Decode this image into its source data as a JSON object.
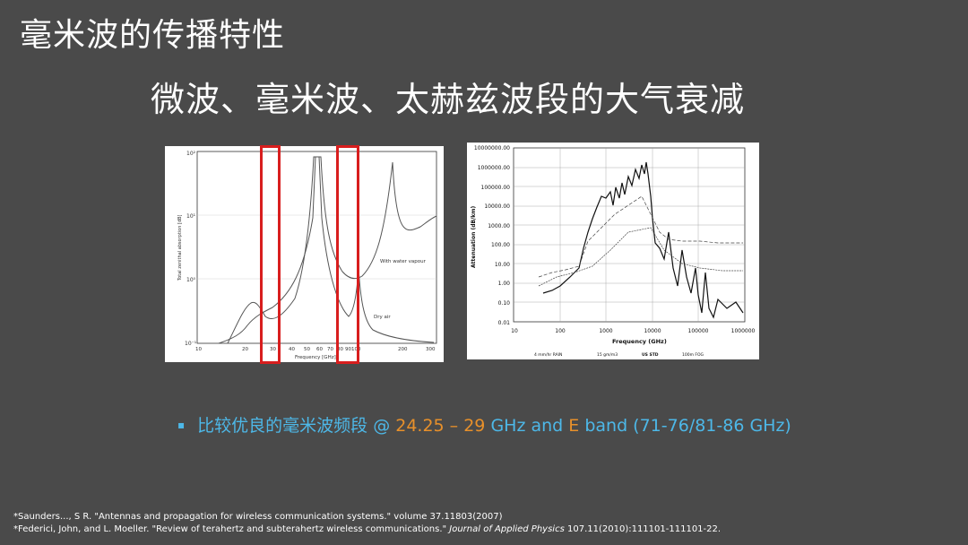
{
  "slide": {
    "title": "毫米波的传播特性",
    "subtitle": "微波、毫米波、太赫兹波段的大气衰减"
  },
  "colors": {
    "background": "#4a4a4a",
    "highlight_red": "#d81e1e",
    "accent_blue": "#4db8e8",
    "accent_orange": "#e8902a"
  },
  "figure_left": {
    "y_axis_label": "Total zenithal absorption [dB]",
    "x_axis_label": "Frequency [GHz]",
    "x_ticks": [
      "10",
      "20",
      "30",
      "40",
      "50",
      "60",
      "70",
      "80",
      "90",
      "100",
      "200",
      "300"
    ],
    "y_ticks": [
      "10²",
      "10¹",
      "10⁰",
      "10⁻¹"
    ],
    "annotations": [
      "With water vapour",
      "Dry air"
    ]
  },
  "figure_right": {
    "y_axis_label": "Attenuation (dB/km)",
    "x_axis_label": "Frequency (GHz)",
    "y_ticks": [
      "10000000.00",
      "1000000.00",
      "100000.00",
      "10000.00",
      "1000.00",
      "100.00",
      "10.00",
      "1.00",
      "0.10",
      "0.01"
    ],
    "x_ticks": [
      "10",
      "100",
      "1000",
      "10000",
      "100000",
      "1000000"
    ],
    "legend": [
      "4 mm/hr RAIN",
      "15 gm/m3",
      "US STD",
      "100m FOG"
    ]
  },
  "bullet": {
    "marker": "▪",
    "part1": "比较优良的毫米波频段",
    "part2": " @ ",
    "part3": "24.25 – 29",
    "part4": " GHz and ",
    "part5": "E",
    "part6": " band ",
    "part7": "(71-76/81-86 GHz)"
  },
  "references": {
    "ref1": "*Saunders..., S R. \"Antennas and propagation for wireless communication systems.\" volume 37.11803(2007)",
    "ref2_main": "*Federici, John, and L. Moeller. \"Review of terahertz and subterahertz wireless communications.\" ",
    "ref2_journal": "Journal of Applied Physics",
    "ref2_tail": " 107.11(2010):111101-111101-22."
  }
}
